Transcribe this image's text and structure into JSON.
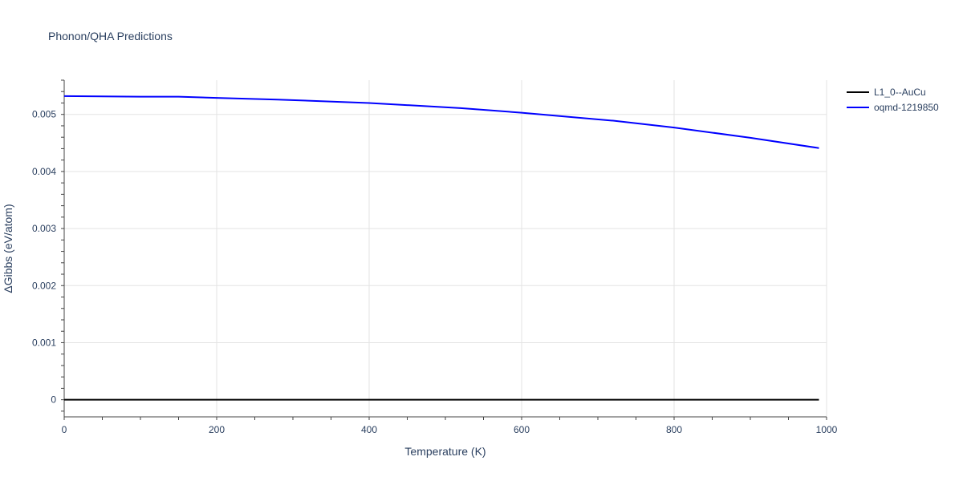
{
  "chart_data": {
    "type": "line",
    "title": "Phonon/QHA Predictions",
    "xlabel": "Temperature (K)",
    "ylabel": "ΔGibbs (eV/atom)",
    "xlim": [
      0,
      1000
    ],
    "ylim": [
      -0.0003,
      0.0056
    ],
    "xticks": [
      0,
      200,
      400,
      600,
      800,
      1000
    ],
    "xtick_labels": [
      "0",
      "200",
      "400",
      "600",
      "800",
      "1000"
    ],
    "yticks": [
      0,
      0.001,
      0.002,
      0.003,
      0.004,
      0.005
    ],
    "ytick_labels": [
      "0",
      "0.001",
      "0.002",
      "0.003",
      "0.004",
      "0.005"
    ],
    "grid": true,
    "legend_position": "top-right",
    "series": [
      {
        "name": "L1_0--AuCu",
        "color": "#000000",
        "x": [
          0,
          990
        ],
        "y": [
          0,
          0
        ]
      },
      {
        "name": "oqmd-1219850",
        "color": "#0000ff",
        "x": [
          0,
          100,
          150,
          200,
          280,
          400,
          520,
          600,
          720,
          800,
          900,
          990
        ],
        "y": [
          0.00532,
          0.00531,
          0.00531,
          0.00529,
          0.00526,
          0.0052,
          0.00511,
          0.00503,
          0.00489,
          0.00477,
          0.00459,
          0.00441
        ]
      }
    ]
  }
}
